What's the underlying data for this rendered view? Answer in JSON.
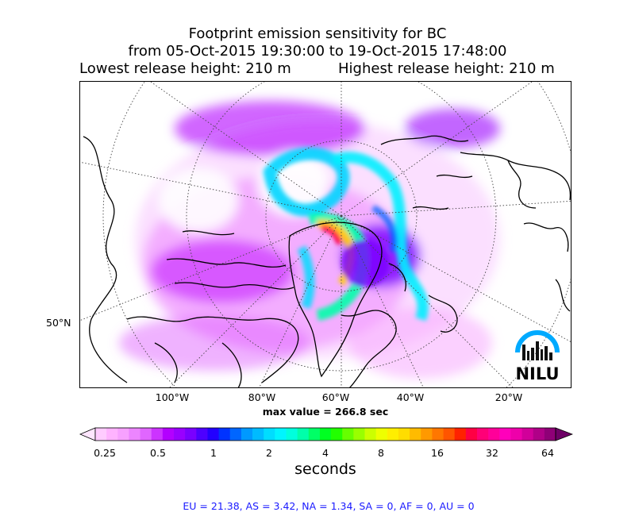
{
  "title": {
    "line1": "Footprint emission sensitivity for BC",
    "line2": "from 05-Oct-2015 19:30:00 to 19-Oct-2015 17:48:00",
    "lowest": "Lowest release height: 210 m",
    "highest": "Highest release height: 210 m"
  },
  "map": {
    "longitude_labels": [
      "100°W",
      "80°W",
      "60°W",
      "40°W",
      "20°W"
    ],
    "latitude_labels": [
      "50°N"
    ],
    "max_value": "max value = 266.8 sec",
    "logo_text": "NILU"
  },
  "colorbar": {
    "tick_labels": [
      "0.25",
      "0.5",
      "1",
      "2",
      "4",
      "8",
      "16",
      "32",
      "64"
    ],
    "units": "seconds",
    "colors": [
      "#ffe6ff",
      "#ffccff",
      "#ffb3ff",
      "#f7a1ff",
      "#ec85ff",
      "#e066ff",
      "#cc33ff",
      "#b300ff",
      "#9900ff",
      "#7a00ff",
      "#4d00ff",
      "#2200ff",
      "#0033ff",
      "#0066ff",
      "#0099ff",
      "#00bbff",
      "#00ddff",
      "#00f5ff",
      "#00ffdd",
      "#00ffaa",
      "#00ff66",
      "#00ff22",
      "#22ff00",
      "#66ff00",
      "#99ff00",
      "#ccff00",
      "#eeff00",
      "#ffee00",
      "#ffdd00",
      "#ffbb00",
      "#ff9900",
      "#ff7700",
      "#ff5500",
      "#ff2200",
      "#ff0044",
      "#ff0077",
      "#ff0099",
      "#ff00bb",
      "#ee00aa",
      "#d1009a",
      "#b00088",
      "#8f0077",
      "#6e0066"
    ]
  },
  "regions_summary": "EU = 21.38,  AS = 3.42,  NA = 1.34,  SA = 0,  AF = 0,  AU = 0"
}
